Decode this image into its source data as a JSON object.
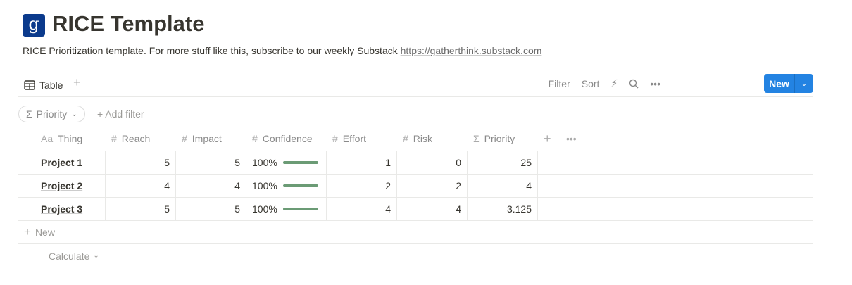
{
  "page": {
    "logo_letter": "g",
    "title": "RICE Template",
    "description": "RICE Prioritization template. For more stuff like this, subscribe to our weekly Substack ",
    "link": "https://gatherthink.substack.com"
  },
  "views": {
    "tab": "Table"
  },
  "toolbar": {
    "filter": "Filter",
    "sort": "Sort",
    "new": "New"
  },
  "filterbar": {
    "pill": "Priority",
    "add_filter": "Add filter"
  },
  "table": {
    "columns": [
      {
        "icon": "Aa",
        "label": "Thing"
      },
      {
        "icon": "#",
        "label": "Reach"
      },
      {
        "icon": "#",
        "label": "Impact"
      },
      {
        "icon": "#",
        "label": "Confidence"
      },
      {
        "icon": "#",
        "label": "Effort"
      },
      {
        "icon": "#",
        "label": "Risk"
      },
      {
        "icon": "Σ",
        "label": "Priority"
      }
    ],
    "rows": [
      {
        "thing": "Project 1",
        "reach": "5",
        "impact": "5",
        "confidence": "100%",
        "effort": "1",
        "risk": "0",
        "priority": "25"
      },
      {
        "thing": "Project 2",
        "reach": "4",
        "impact": "4",
        "confidence": "100%",
        "effort": "2",
        "risk": "2",
        "priority": "4"
      },
      {
        "thing": "Project 3",
        "reach": "5",
        "impact": "5",
        "confidence": "100%",
        "effort": "4",
        "risk": "4",
        "priority": "3.125"
      }
    ],
    "new_row": "New",
    "calculate": "Calculate"
  },
  "colors": {
    "accent": "#2383e2",
    "progress": "#6b9b75",
    "logo": "#0b3a8c"
  }
}
